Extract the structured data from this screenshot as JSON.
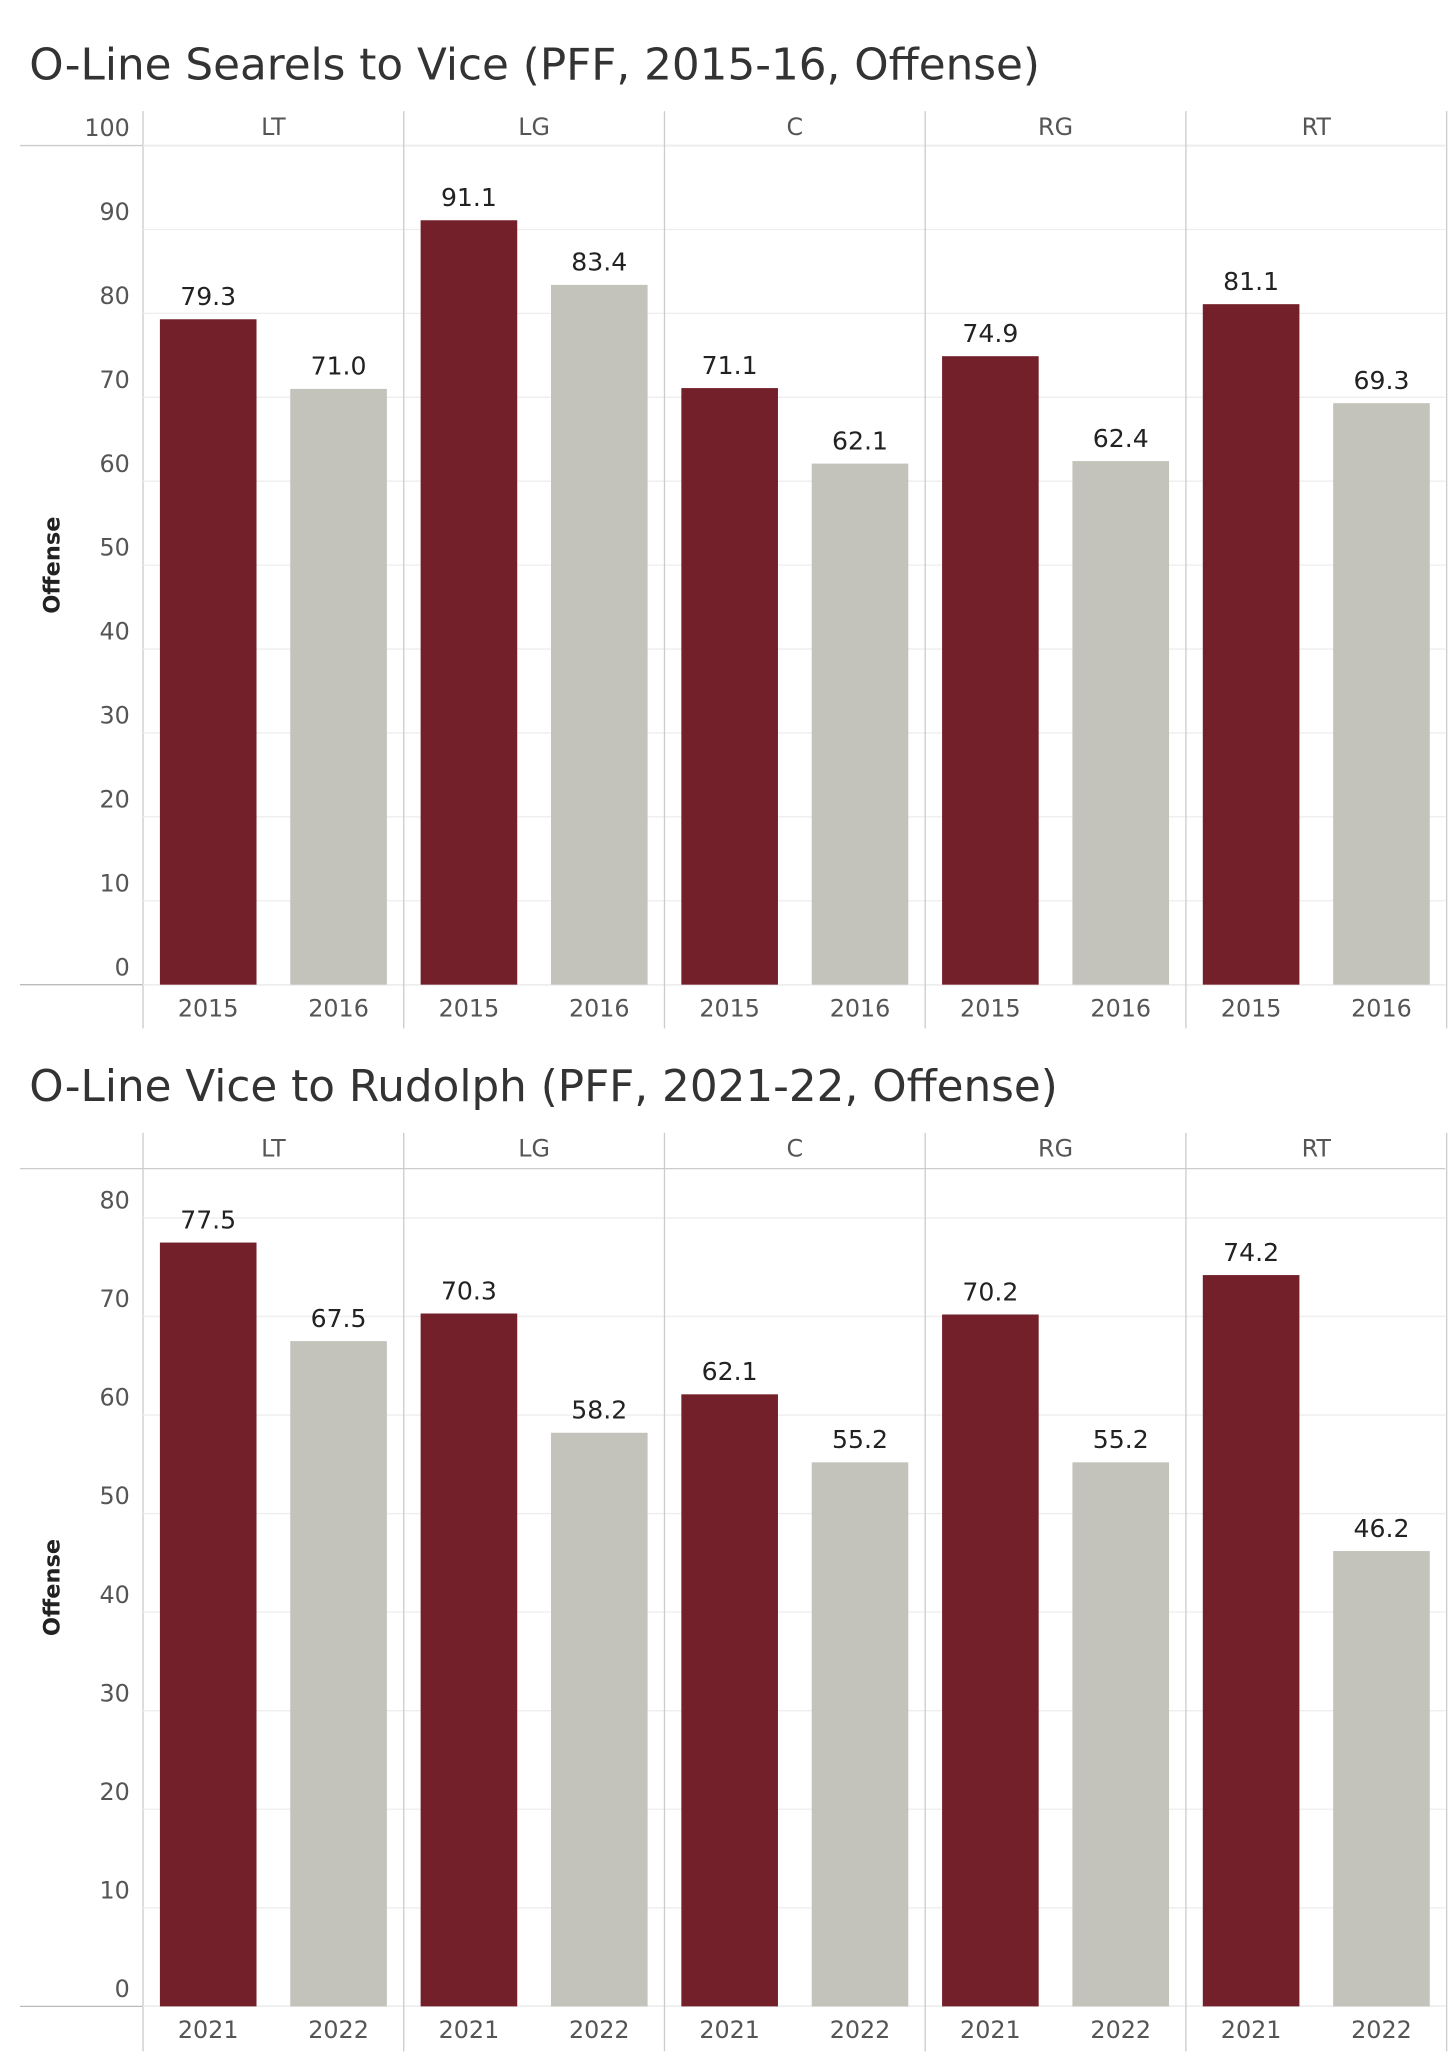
{
  "chart_data": [
    {
      "type": "bar",
      "title": "O-Line Searels to Vice (PFF, 2015-16, Offense)",
      "y_label": "Offense",
      "categories": [
        "LT",
        "LG",
        "C",
        "RG",
        "RT"
      ],
      "series": [
        {
          "name": "2015",
          "color": "#74202b",
          "values": [
            79.3,
            91.1,
            71.1,
            74.9,
            81.1
          ],
          "value_labels": [
            "79.3",
            "91.1",
            "71.1",
            "74.9",
            "81.1"
          ]
        },
        {
          "name": "2016",
          "color": "#c3c3bb",
          "values": [
            71.0,
            83.4,
            62.1,
            62.4,
            69.3
          ],
          "value_labels": [
            "71.0",
            "83.4",
            "62.1",
            "62.4",
            "69.3"
          ]
        }
      ],
      "ylim": [
        0,
        100
      ],
      "yticks": [
        0,
        10,
        20,
        30,
        40,
        50,
        60,
        70,
        80,
        90,
        100
      ],
      "grid": true
    },
    {
      "type": "bar",
      "title": "O-Line Vice to Rudolph (PFF, 2021-22, Offense)",
      "y_label": "Offense",
      "categories": [
        "LT",
        "LG",
        "C",
        "RG",
        "RT"
      ],
      "series": [
        {
          "name": "2021",
          "color": "#74202b",
          "values": [
            77.5,
            70.3,
            62.1,
            70.2,
            74.2
          ],
          "value_labels": [
            "77.5",
            "70.3",
            "62.1",
            "70.2",
            "74.2"
          ]
        },
        {
          "name": "2022",
          "color": "#c3c3bb",
          "values": [
            67.5,
            58.2,
            55.2,
            55.2,
            46.2
          ],
          "value_labels": [
            "67.5",
            "58.2",
            "55.2",
            "55.2",
            "46.2"
          ]
        }
      ],
      "ylim": [
        0,
        85
      ],
      "yticks": [
        0,
        10,
        20,
        30,
        40,
        50,
        60,
        70,
        80
      ],
      "grid": true
    }
  ]
}
